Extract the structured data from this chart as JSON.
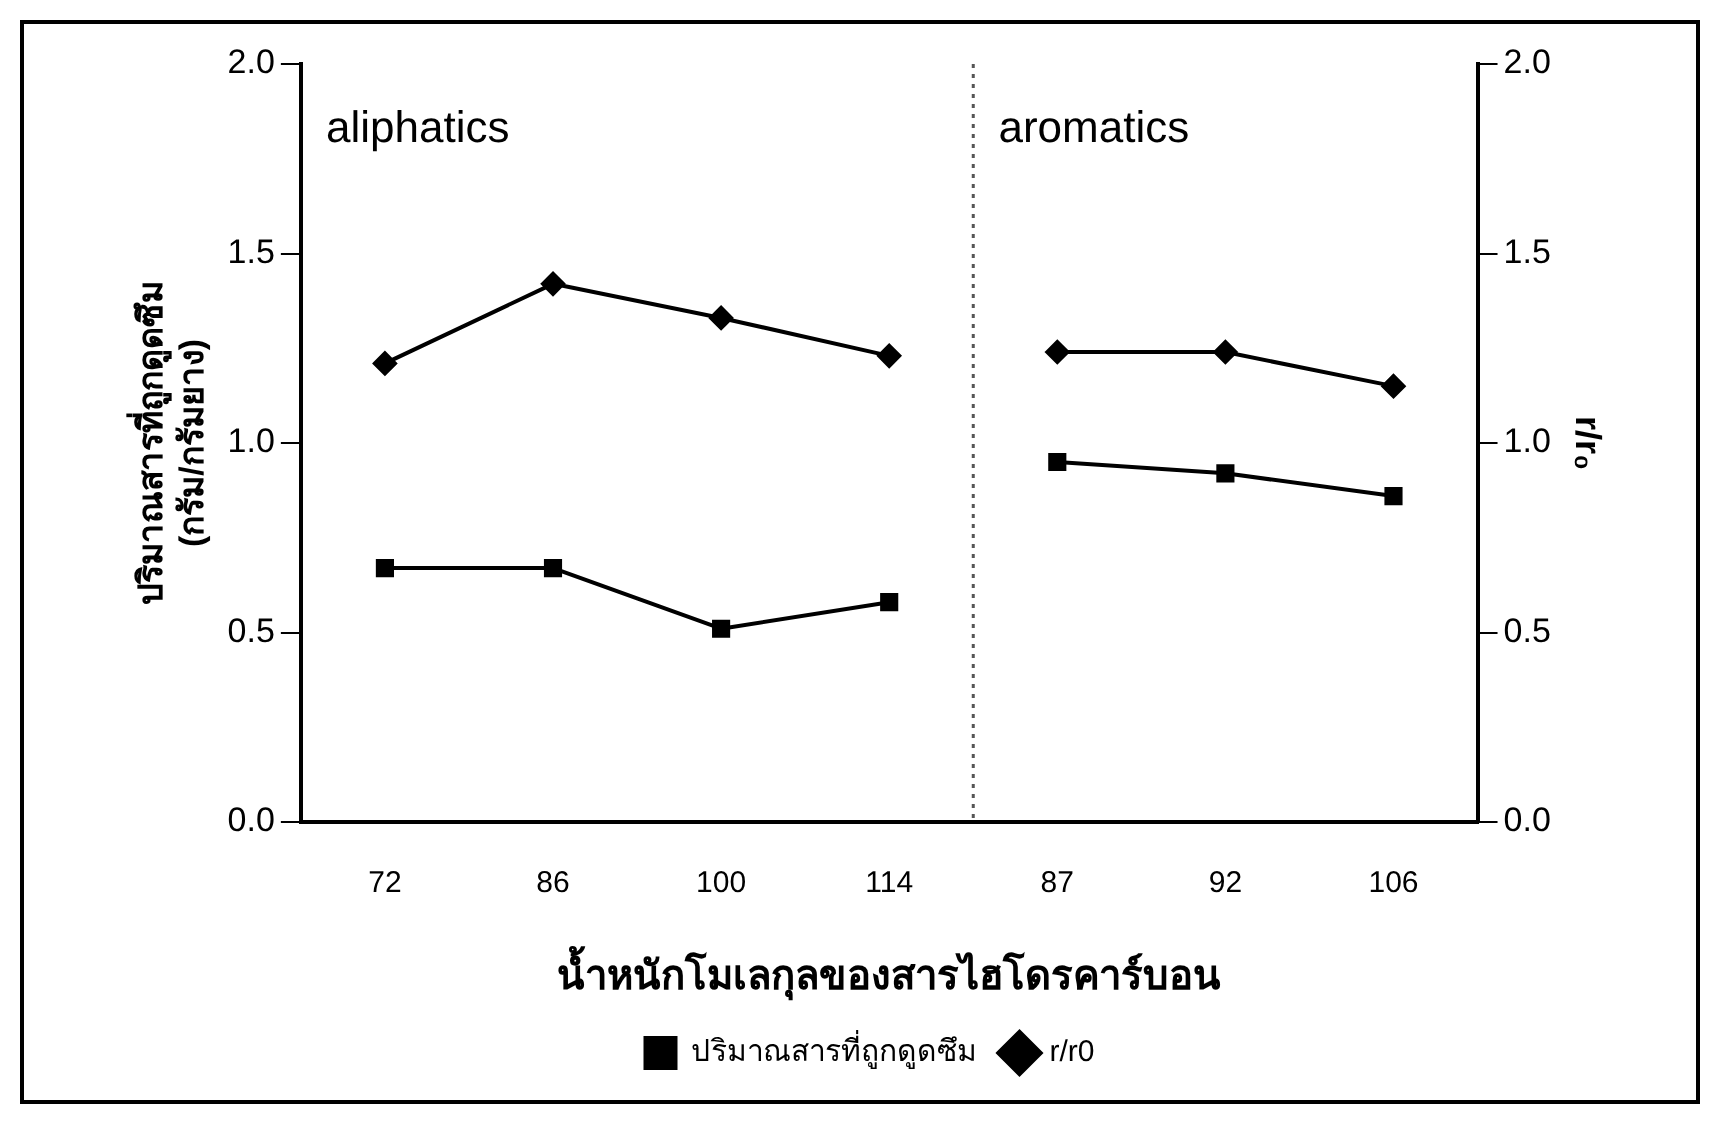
{
  "chart_data": {
    "type": "line",
    "xlabel": "น้ำหนักโมเลกุลของสารไฮโดรคาร์บอน",
    "ylabel": "ปริมาณสารที่ถูกดูดซึม\n(กรัม/กรัมยาง)",
    "y2label": "r/r₀",
    "categories": [
      "72",
      "86",
      "100",
      "114",
      "87",
      "92",
      "106"
    ],
    "series": [
      {
        "name": "ปริมาณสารที่ถูกดูดซึม",
        "color": "#000000",
        "marker": "square",
        "values": [
          0.67,
          0.67,
          0.51,
          0.58,
          null,
          null,
          null
        ]
      },
      {
        "color": "#000000",
        "marker": "square",
        "values": [
          null,
          null,
          null,
          null,
          0.95,
          0.92,
          0.86
        ]
      },
      {
        "name": "r/r0",
        "color": "#000000",
        "marker": "diamond",
        "axis": "y2",
        "values": [
          1.21,
          1.42,
          1.33,
          1.23,
          null,
          null,
          null
        ]
      },
      {
        "color": "#000000",
        "marker": "diamond",
        "axis": "y2",
        "values": [
          null,
          null,
          null,
          null,
          1.24,
          1.24,
          1.15
        ]
      }
    ],
    "ylim": [
      0,
      2
    ],
    "yticks": [
      {
        "value": 0,
        "label": "0.0"
      },
      {
        "value": 0.5,
        "label": "0.5"
      },
      {
        "value": 1,
        "label": "1.0"
      },
      {
        "value": 1.5,
        "label": "1.5"
      },
      {
        "value": 2,
        "label": "2.0"
      }
    ],
    "y2lim": [
      0,
      2
    ],
    "y2ticks": [
      {
        "value": 0,
        "label": "0.0"
      },
      {
        "value": 0.5,
        "label": "0.5"
      },
      {
        "value": 1,
        "label": "1.0"
      },
      {
        "value": 1.5,
        "label": "1.5"
      },
      {
        "value": 2,
        "label": "2.0"
      }
    ],
    "annotations": [
      "aliphatics",
      "aromatics"
    ],
    "grid": false,
    "legend": "bottom",
    "line_style": "solid"
  }
}
